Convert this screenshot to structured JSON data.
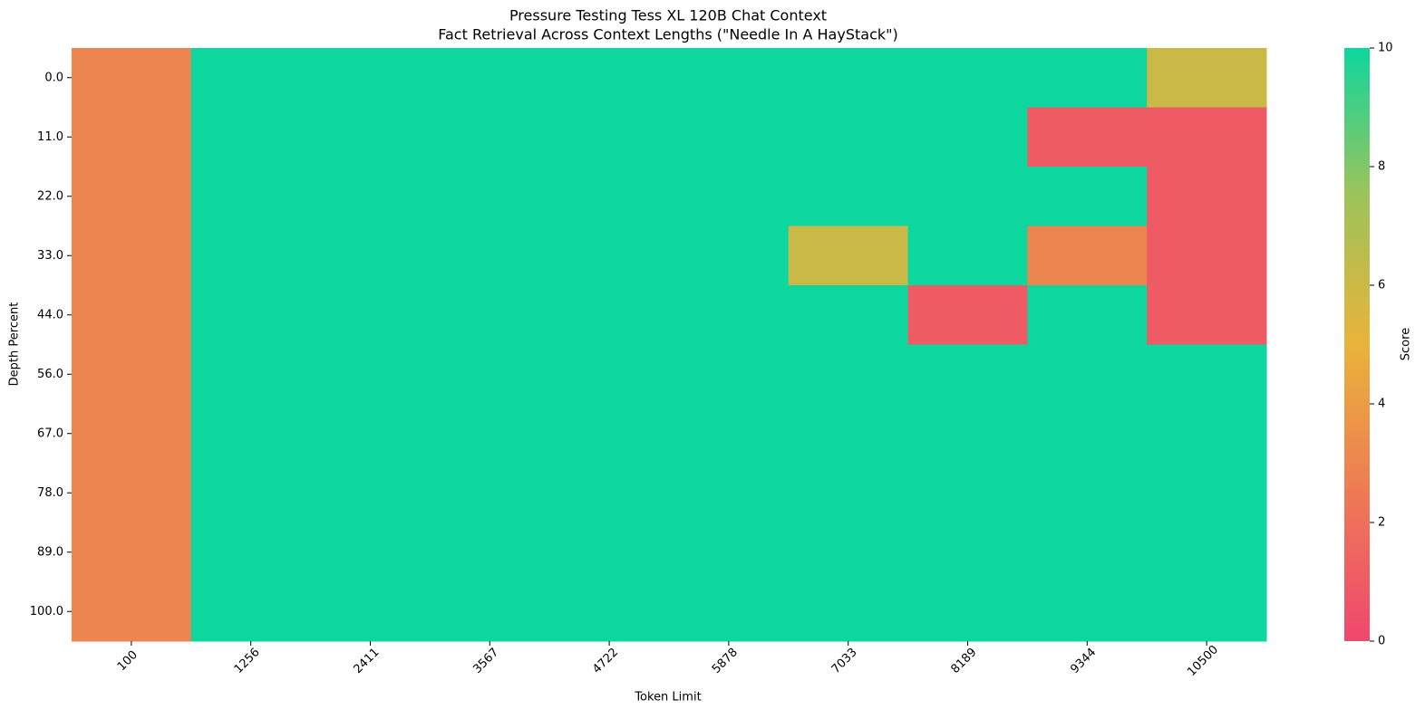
{
  "chart_data": {
    "type": "heatmap",
    "title": "Pressure Testing Tess XL 120B Chat Context",
    "subtitle": "Fact Retrieval Across Context Lengths (\"Needle In A HayStack\")",
    "x_label": "Token Limit",
    "y_label": "Depth Percent",
    "colorbar_label": "Score",
    "x": [
      100,
      1256,
      2411,
      3567,
      4722,
      5878,
      7033,
      8189,
      9344,
      10500
    ],
    "y": [
      "0.0",
      "11.0",
      "22.0",
      "33.0",
      "44.0",
      "56.0",
      "67.0",
      "78.0",
      "89.0",
      "100.0"
    ],
    "values": [
      [
        3,
        10,
        10,
        10,
        10,
        10,
        10,
        10,
        10,
        6
      ],
      [
        3,
        10,
        10,
        10,
        10,
        10,
        10,
        10,
        1,
        1
      ],
      [
        3,
        10,
        10,
        10,
        10,
        10,
        10,
        10,
        10,
        1
      ],
      [
        3,
        10,
        10,
        10,
        10,
        10,
        6,
        10,
        3,
        1
      ],
      [
        3,
        10,
        10,
        10,
        10,
        10,
        10,
        1,
        10,
        1
      ],
      [
        3,
        10,
        10,
        10,
        10,
        10,
        10,
        10,
        10,
        10
      ],
      [
        3,
        10,
        10,
        10,
        10,
        10,
        10,
        10,
        10,
        10
      ],
      [
        3,
        10,
        10,
        10,
        10,
        10,
        10,
        10,
        10,
        10
      ],
      [
        3,
        10,
        10,
        10,
        10,
        10,
        10,
        10,
        10,
        10
      ],
      [
        3,
        10,
        10,
        10,
        10,
        10,
        10,
        10,
        10,
        10
      ]
    ],
    "zlim": [
      0,
      10
    ],
    "zticks": [
      0,
      2,
      4,
      6,
      8,
      10
    ],
    "colorscale": [
      "#ef476f",
      "#ee7a55",
      "#e9b33a",
      "#9ec35a",
      "#0dd69e"
    ]
  }
}
